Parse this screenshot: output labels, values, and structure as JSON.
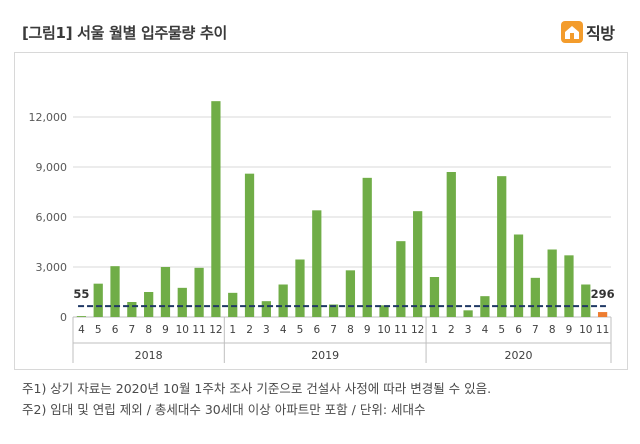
{
  "title": "[그림1] 서울 월별 입주물량 추이",
  "logo": {
    "icon": "house-icon",
    "text": "직방",
    "color": "#f39c2c"
  },
  "notes": [
    "주1) 상기 자료는 2020년 10월 1주차 조사 기준으로 건설사 사정에 따라 변경될 수 있음.",
    "주2) 임대 및 연립 제외 / 총세대수 30세대 이상 아파트만 포함 / 단위: 세대수"
  ],
  "chart_data": {
    "type": "bar",
    "colors": {
      "bar": "#70ad47",
      "highlight": "#ed7d31",
      "reference_line": "#1f3864"
    },
    "ylim": [
      0,
      15000
    ],
    "yticks": [
      "0",
      "3,000",
      "6,000",
      "9,000",
      "12,000"
    ],
    "ytick_values": [
      0,
      3000,
      6000,
      9000,
      12000
    ],
    "grid": true,
    "groups": [
      {
        "label": "2018",
        "months": [
          "4",
          "5",
          "6",
          "7",
          "8",
          "9",
          "10",
          "11",
          "12"
        ],
        "values": [
          55,
          2000,
          3050,
          900,
          1500,
          3000,
          1750,
          2950,
          12950
        ]
      },
      {
        "label": "2019",
        "months": [
          "1",
          "2",
          "3",
          "4",
          "5",
          "6",
          "7",
          "8",
          "9",
          "10",
          "11",
          "12"
        ],
        "values": [
          1450,
          8600,
          950,
          1950,
          3450,
          6400,
          750,
          2800,
          8350,
          700,
          4550,
          6350
        ]
      },
      {
        "label": "2020",
        "months": [
          "1",
          "2",
          "3",
          "4",
          "5",
          "6",
          "7",
          "8",
          "9",
          "10",
          "11"
        ],
        "values": [
          2400,
          8700,
          400,
          1250,
          8450,
          4950,
          2350,
          4050,
          3700,
          1950,
          296
        ]
      }
    ],
    "reference_line": {
      "value": 650
    },
    "annotations": [
      {
        "text": "55",
        "position": "start"
      },
      {
        "text": "296",
        "position": "end"
      }
    ]
  }
}
